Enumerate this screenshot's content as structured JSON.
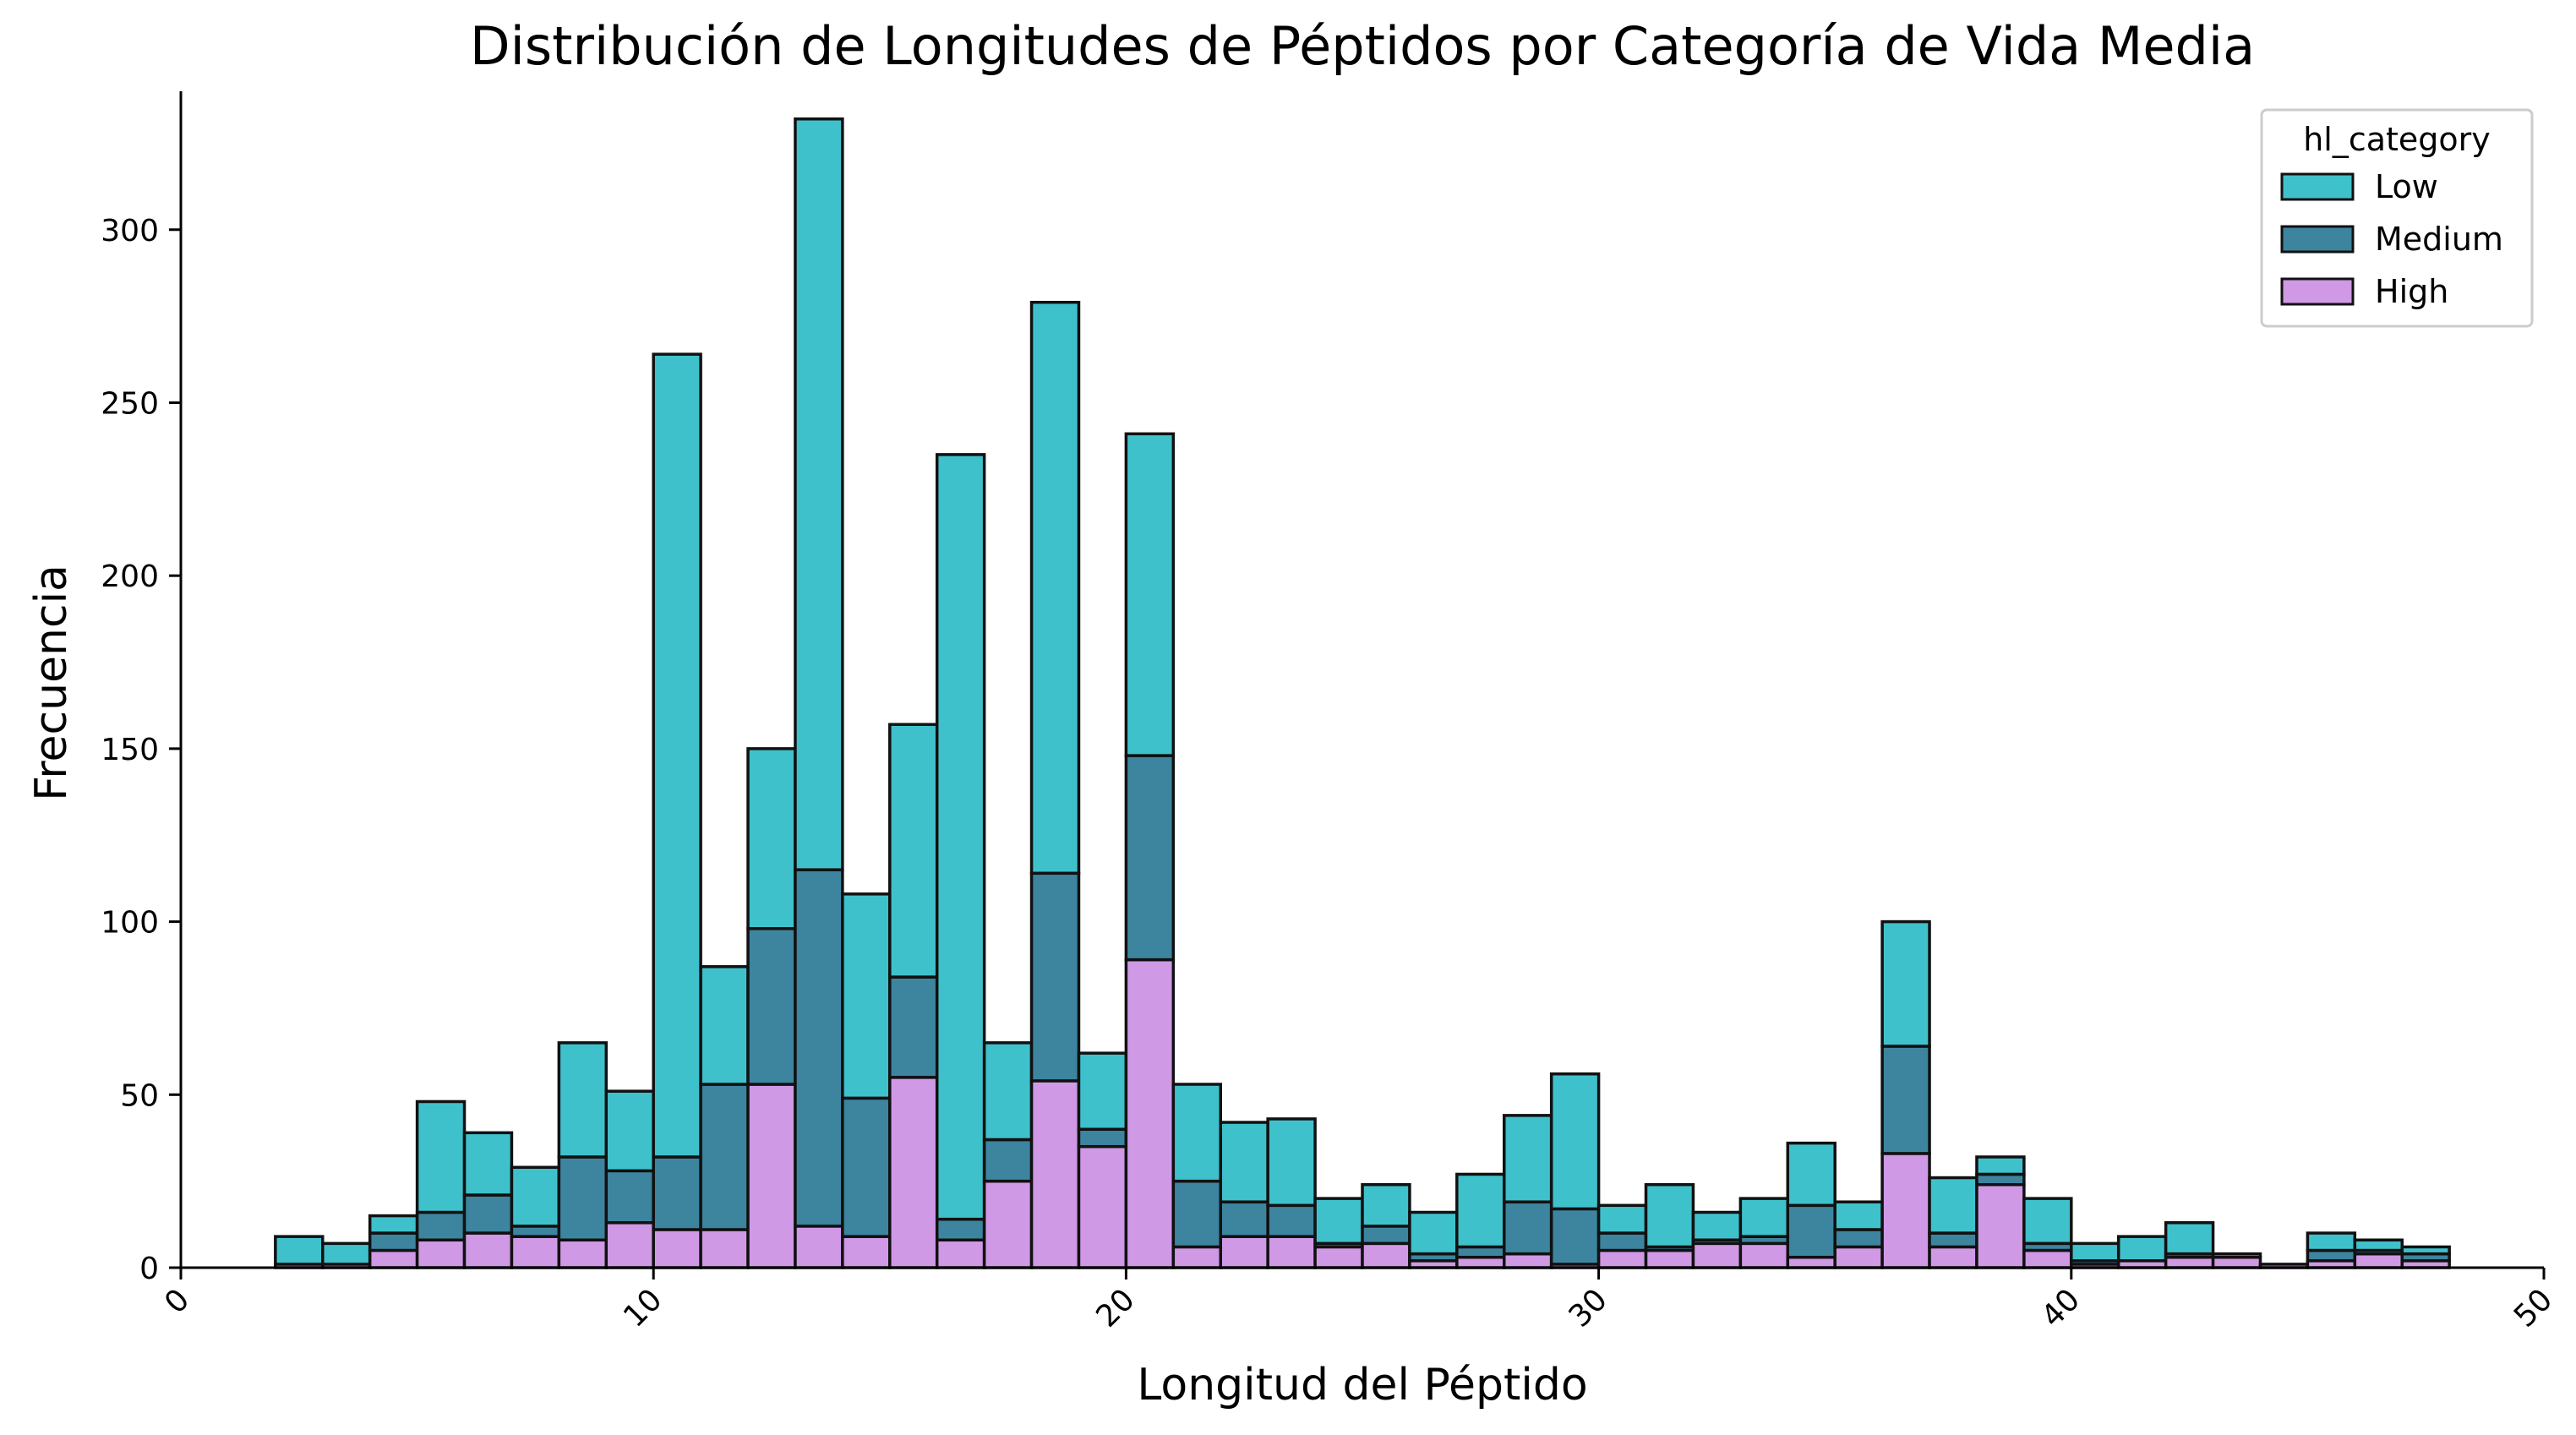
{
  "chart_data": {
    "type": "bar",
    "stacked": true,
    "title": "Distribución de Longitudes de Péptidos por Categoría de Vida Media",
    "xlabel": "Longitud del Péptido",
    "ylabel": "Frecuencia",
    "xlim": [
      0,
      50
    ],
    "ylim": [
      0,
      340
    ],
    "x_ticks": [
      0,
      10,
      20,
      30,
      40,
      50
    ],
    "x_tick_rotation": -45,
    "y_ticks": [
      0,
      50,
      100,
      150,
      200,
      250,
      300
    ],
    "grid": false,
    "legend": {
      "title": "hl_category",
      "placement": "top-right"
    },
    "bins": [
      {
        "start": 2.0,
        "end": 3.0
      },
      {
        "start": 3.0,
        "end": 4.0
      },
      {
        "start": 4.0,
        "end": 5.0
      },
      {
        "start": 5.0,
        "end": 6.0
      },
      {
        "start": 6.0,
        "end": 7.0
      },
      {
        "start": 7.0,
        "end": 8.0
      },
      {
        "start": 8.0,
        "end": 9.0
      },
      {
        "start": 9.0,
        "end": 10.0
      },
      {
        "start": 10.0,
        "end": 11.0
      },
      {
        "start": 11.0,
        "end": 12.0
      },
      {
        "start": 12.0,
        "end": 13.0
      },
      {
        "start": 13.0,
        "end": 14.0
      },
      {
        "start": 14.0,
        "end": 15.0
      },
      {
        "start": 15.0,
        "end": 16.0
      },
      {
        "start": 16.0,
        "end": 17.0
      },
      {
        "start": 17.0,
        "end": 18.0
      },
      {
        "start": 18.0,
        "end": 19.0
      },
      {
        "start": 19.0,
        "end": 20.0
      },
      {
        "start": 20.0,
        "end": 21.0
      },
      {
        "start": 21.0,
        "end": 22.0
      },
      {
        "start": 22.0,
        "end": 23.0
      },
      {
        "start": 23.0,
        "end": 24.0
      },
      {
        "start": 24.0,
        "end": 25.0
      },
      {
        "start": 25.0,
        "end": 26.0
      },
      {
        "start": 26.0,
        "end": 27.0
      },
      {
        "start": 27.0,
        "end": 28.0
      },
      {
        "start": 28.0,
        "end": 29.0
      },
      {
        "start": 29.0,
        "end": 30.0
      },
      {
        "start": 30.0,
        "end": 31.0
      },
      {
        "start": 31.0,
        "end": 32.0
      },
      {
        "start": 32.0,
        "end": 33.0
      },
      {
        "start": 33.0,
        "end": 34.0
      },
      {
        "start": 34.0,
        "end": 35.0
      },
      {
        "start": 35.0,
        "end": 36.0
      },
      {
        "start": 36.0,
        "end": 37.0
      },
      {
        "start": 37.0,
        "end": 38.0
      },
      {
        "start": 38.0,
        "end": 39.0
      },
      {
        "start": 39.0,
        "end": 40.0
      },
      {
        "start": 40.0,
        "end": 41.0
      },
      {
        "start": 41.0,
        "end": 42.0
      },
      {
        "start": 42.0,
        "end": 43.0
      },
      {
        "start": 43.0,
        "end": 44.0
      },
      {
        "start": 44.0,
        "end": 45.0
      },
      {
        "start": 45.0,
        "end": 46.0
      },
      {
        "start": 46.0,
        "end": 47.0
      },
      {
        "start": 47.0,
        "end": 48.0
      }
    ],
    "series": [
      {
        "name": "Low",
        "color": "#3fc1cc",
        "values": [
          8,
          6,
          5,
          32,
          18,
          17,
          33,
          23,
          232,
          34,
          52,
          217,
          59,
          73,
          221,
          28,
          165,
          22,
          93,
          28,
          23,
          25,
          13,
          12,
          12,
          21,
          25,
          39,
          8,
          18,
          8,
          11,
          18,
          8,
          36,
          16,
          5,
          13,
          5,
          7,
          9,
          1,
          0,
          5,
          3,
          2
        ]
      },
      {
        "name": "Medium",
        "color": "#3d849f",
        "values": [
          0,
          0,
          5,
          8,
          11,
          3,
          24,
          15,
          21,
          42,
          45,
          103,
          40,
          29,
          6,
          12,
          60,
          5,
          59,
          19,
          10,
          9,
          1,
          5,
          2,
          3,
          15,
          16,
          5,
          1,
          1,
          2,
          15,
          5,
          31,
          4,
          3,
          2,
          1,
          0,
          1,
          0,
          0,
          3,
          1,
          2
        ]
      },
      {
        "name": "High",
        "color": "#cf99e5",
        "values": [
          1,
          1,
          5,
          8,
          10,
          9,
          8,
          13,
          11,
          11,
          53,
          12,
          9,
          55,
          8,
          25,
          54,
          35,
          89,
          6,
          9,
          9,
          6,
          7,
          2,
          3,
          4,
          1,
          5,
          5,
          7,
          7,
          3,
          6,
          33,
          6,
          24,
          5,
          1,
          2,
          3,
          3,
          1,
          2,
          4,
          2
        ]
      }
    ]
  }
}
